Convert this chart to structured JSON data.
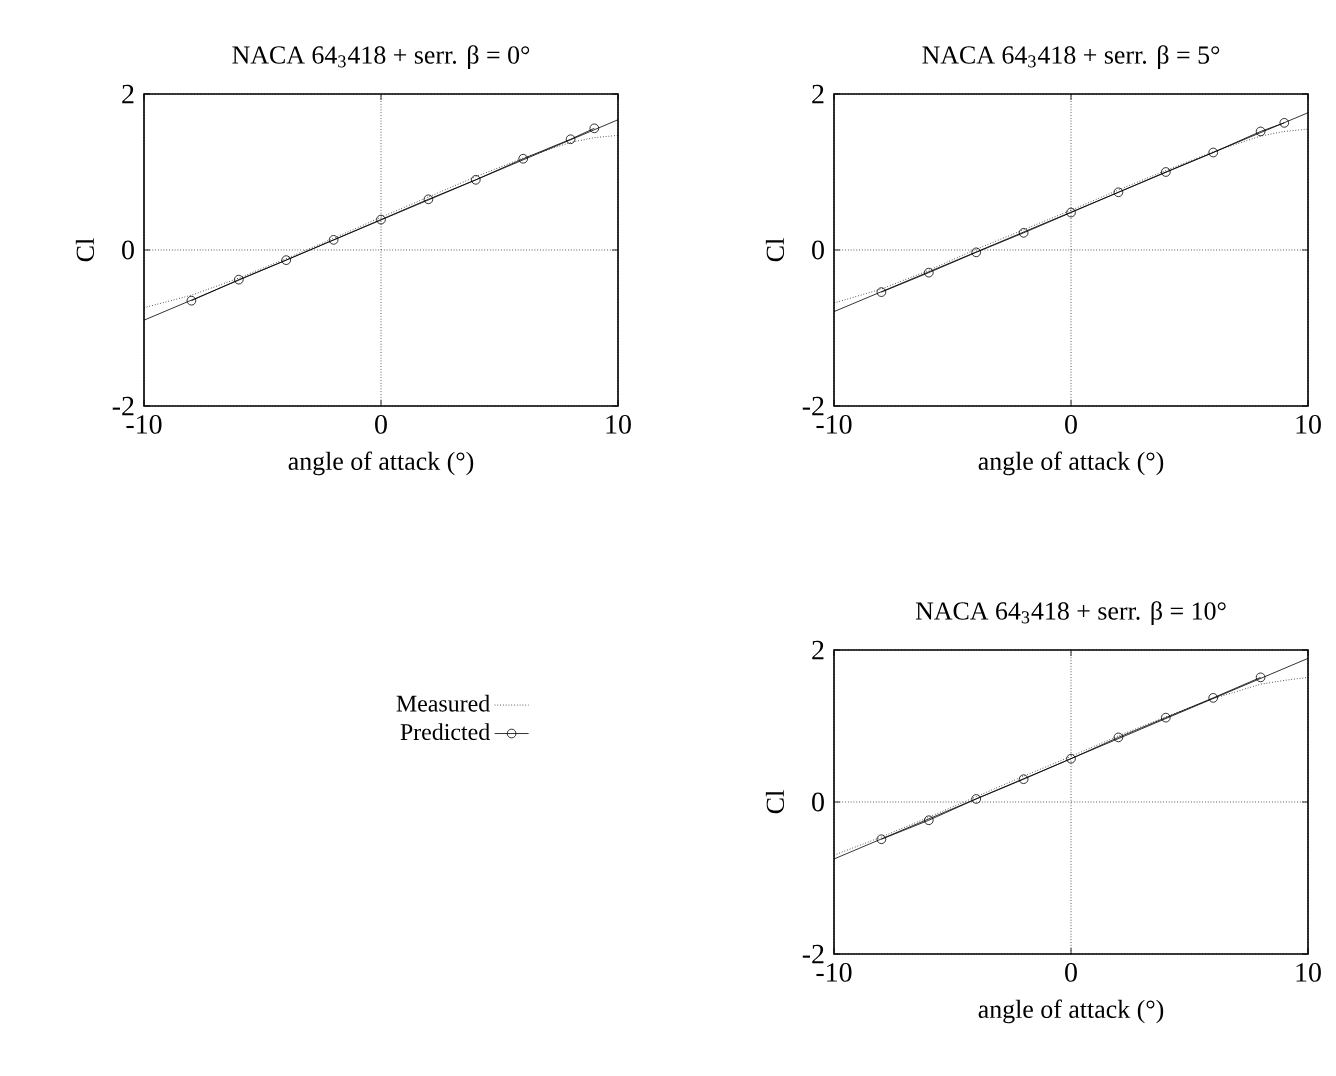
{
  "chart_data": [
    {
      "type": "line",
      "title": "NACA 64$_{3}$418 + serr. β = 0°",
      "xlabel": "angle of attack (°)",
      "ylabel": "Cl",
      "xlim": [
        -10,
        10
      ],
      "ylim": [
        -2,
        2
      ],
      "xticks": [
        -10,
        0,
        10
      ],
      "yticks": [
        -2,
        0,
        2
      ],
      "grid": true,
      "legend": false,
      "series": [
        {
          "color": "#000000",
          "line_style": "dotted",
          "marker": "none",
          "x": [
            -10,
            -8,
            -6,
            -4,
            -2,
            0,
            2,
            4,
            6,
            8,
            9,
            10
          ],
          "values": [
            -0.74,
            -0.58,
            -0.36,
            -0.11,
            0.15,
            0.42,
            0.68,
            0.94,
            1.18,
            1.38,
            1.44,
            1.47
          ]
        },
        {
          "color": "#000000",
          "line_style": "solid",
          "marker": "circle",
          "x": [
            -8,
            -6,
            -4,
            -2,
            0,
            2,
            4,
            6,
            8,
            9
          ],
          "values": [
            -0.65,
            -0.38,
            -0.13,
            0.13,
            0.39,
            0.65,
            0.9,
            1.17,
            1.42,
            1.56
          ]
        },
        {
          "type": "line",
          "color": "#000000",
          "line_style": "solid",
          "marker": "none",
          "x": [
            -10,
            10
          ],
          "values": [
            -0.9,
            1.67
          ]
        }
      ]
    },
    {
      "type": "line",
      "title": "NACA 64$_{3}$418 + serr. β = 5°",
      "xlabel": "angle of attack (°)",
      "ylabel": "Cl",
      "xlim": [
        -10,
        10
      ],
      "ylim": [
        -2,
        2
      ],
      "xticks": [
        -10,
        0,
        10
      ],
      "yticks": [
        -2,
        0,
        2
      ],
      "grid": true,
      "legend": false,
      "series": [
        {
          "color": "#000000",
          "line_style": "dotted",
          "marker": "none",
          "x": [
            -10,
            -8,
            -6,
            -4,
            -2,
            0,
            2,
            4,
            6,
            8,
            9,
            10
          ],
          "values": [
            -0.68,
            -0.5,
            -0.26,
            0.01,
            0.26,
            0.51,
            0.77,
            1.02,
            1.26,
            1.46,
            1.52,
            1.55
          ]
        },
        {
          "color": "#000000",
          "line_style": "solid",
          "marker": "circle",
          "x": [
            -8,
            -6,
            -4,
            -2,
            0,
            2,
            4,
            6,
            8,
            9
          ],
          "values": [
            -0.54,
            -0.29,
            -0.03,
            0.22,
            0.48,
            0.74,
            1.0,
            1.25,
            1.52,
            1.63
          ]
        },
        {
          "type": "line",
          "color": "#000000",
          "line_style": "solid",
          "marker": "none",
          "x": [
            -10,
            10
          ],
          "values": [
            -0.79,
            1.76
          ]
        }
      ]
    },
    {
      "type": "line",
      "title": "NACA 64$_{3}$418 + serr. β = 10°",
      "xlabel": "angle of attack (°)",
      "ylabel": "Cl",
      "xlim": [
        -10,
        10
      ],
      "ylim": [
        -2,
        2
      ],
      "xticks": [
        -10,
        0,
        10
      ],
      "yticks": [
        -2,
        0,
        2
      ],
      "grid": true,
      "legend": "left",
      "series": [
        {
          "name": "Measured",
          "color": "#000000",
          "line_style": "dotted",
          "marker": "none",
          "x": [
            -10,
            -8,
            -6,
            -4,
            -2,
            0,
            2,
            4,
            6,
            8,
            9,
            10
          ],
          "values": [
            -0.7,
            -0.46,
            -0.2,
            0.07,
            0.34,
            0.6,
            0.87,
            1.12,
            1.36,
            1.55,
            1.6,
            1.64
          ]
        },
        {
          "name": "Predicted",
          "color": "#000000",
          "line_style": "solid",
          "marker": "circle",
          "x": [
            -8,
            -6,
            -4,
            -2,
            0,
            2,
            4,
            6,
            8
          ],
          "values": [
            -0.49,
            -0.24,
            0.04,
            0.3,
            0.57,
            0.85,
            1.11,
            1.37,
            1.64
          ]
        },
        {
          "type": "line",
          "color": "#000000",
          "line_style": "solid",
          "marker": "none",
          "x": [
            -10,
            10
          ],
          "values": [
            -0.75,
            1.89
          ]
        }
      ]
    }
  ]
}
